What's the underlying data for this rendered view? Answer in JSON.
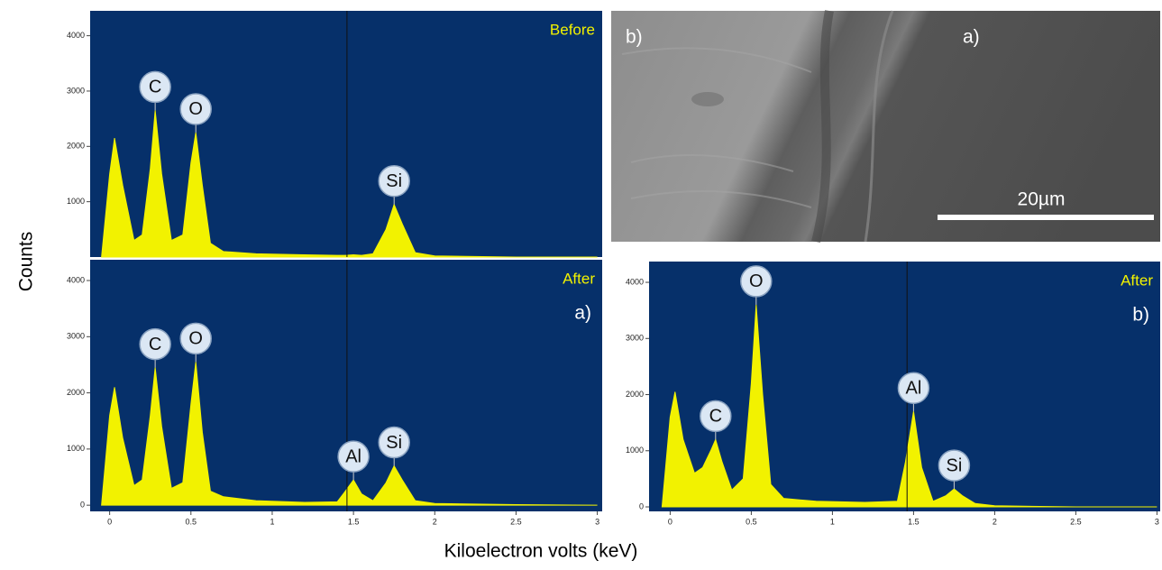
{
  "y_label": "Counts",
  "x_label": "Kiloelectron volts (keV)",
  "image": {
    "labels": [
      "b)",
      "a)"
    ],
    "scale_bar": "20µm"
  },
  "chart_data": [
    {
      "type": "area",
      "label": "Before",
      "color": "#f2f200",
      "background": "#06306a",
      "xlim": [
        -0.12,
        3.03
      ],
      "ylim": [
        0,
        4450
      ],
      "yticks": [
        1000,
        2000,
        3000,
        4000
      ],
      "cursor_x": 1.46,
      "x": [
        -0.05,
        0,
        0.03,
        0.08,
        0.15,
        0.2,
        0.25,
        0.28,
        0.32,
        0.38,
        0.45,
        0.5,
        0.53,
        0.57,
        0.62,
        0.7,
        0.9,
        1.2,
        1.4,
        1.45,
        1.5,
        1.55,
        1.62,
        1.7,
        1.75,
        1.8,
        1.88,
        2.0,
        2.5,
        3.0
      ],
      "values": [
        0,
        1500,
        2150,
        1300,
        300,
        400,
        1600,
        2650,
        1500,
        300,
        400,
        1700,
        2250,
        1300,
        250,
        100,
        60,
        40,
        30,
        30,
        40,
        30,
        60,
        500,
        950,
        600,
        80,
        20,
        0,
        0
      ],
      "peaks": [
        {
          "label": "C",
          "x": 0.28,
          "y": 2650
        },
        {
          "label": "O",
          "x": 0.53,
          "y": 2250
        },
        {
          "label": "Si",
          "x": 1.75,
          "y": 950
        }
      ]
    },
    {
      "type": "area",
      "label": "After",
      "panel": "a)",
      "color": "#f2f200",
      "background": "#06306a",
      "xlim": [
        -0.12,
        3.03
      ],
      "ylim": [
        -110,
        4370
      ],
      "yticks": [
        0,
        1000,
        2000,
        3000,
        4000
      ],
      "xticks": [
        0,
        0.5,
        1,
        1.5,
        2,
        2.5,
        3
      ],
      "cursor_x": 1.46,
      "x": [
        -0.05,
        0,
        0.03,
        0.08,
        0.15,
        0.2,
        0.25,
        0.28,
        0.32,
        0.38,
        0.45,
        0.5,
        0.53,
        0.57,
        0.62,
        0.7,
        0.9,
        1.2,
        1.4,
        1.45,
        1.5,
        1.55,
        1.62,
        1.7,
        1.75,
        1.8,
        1.88,
        2.0,
        2.5,
        3.0
      ],
      "values": [
        0,
        1600,
        2100,
        1200,
        350,
        450,
        1600,
        2450,
        1400,
        300,
        400,
        1800,
        2550,
        1300,
        250,
        150,
        80,
        50,
        60,
        250,
        450,
        200,
        80,
        400,
        700,
        450,
        80,
        30,
        10,
        0
      ],
      "peaks": [
        {
          "label": "C",
          "x": 0.28,
          "y": 2450
        },
        {
          "label": "O",
          "x": 0.53,
          "y": 2550
        },
        {
          "label": "Al",
          "x": 1.5,
          "y": 450
        },
        {
          "label": "Si",
          "x": 1.75,
          "y": 700
        }
      ]
    },
    {
      "type": "area",
      "label": "After",
      "panel": "b)",
      "color": "#f2f200",
      "background": "#06306a",
      "xlim": [
        -0.13,
        3.02
      ],
      "ylim": [
        -80,
        4370
      ],
      "yticks": [
        0,
        1000,
        2000,
        3000,
        4000
      ],
      "xticks": [
        0,
        0.5,
        1,
        1.5,
        2,
        2.5,
        3
      ],
      "cursor_x": 1.46,
      "x": [
        -0.05,
        0,
        0.03,
        0.08,
        0.15,
        0.2,
        0.25,
        0.28,
        0.32,
        0.38,
        0.45,
        0.5,
        0.53,
        0.57,
        0.62,
        0.7,
        0.9,
        1.2,
        1.4,
        1.45,
        1.5,
        1.55,
        1.62,
        1.7,
        1.75,
        1.8,
        1.88,
        2.0,
        2.5,
        3.0
      ],
      "values": [
        0,
        1600,
        2050,
        1200,
        600,
        700,
        1000,
        1200,
        800,
        300,
        500,
        2200,
        3600,
        2000,
        400,
        150,
        100,
        80,
        100,
        800,
        1700,
        700,
        100,
        200,
        320,
        200,
        60,
        20,
        0,
        0
      ],
      "peaks": [
        {
          "label": "C",
          "x": 0.28,
          "y": 1200
        },
        {
          "label": "O",
          "x": 0.53,
          "y": 3600
        },
        {
          "label": "Al",
          "x": 1.5,
          "y": 1700
        },
        {
          "label": "Si",
          "x": 1.75,
          "y": 320
        }
      ]
    }
  ]
}
